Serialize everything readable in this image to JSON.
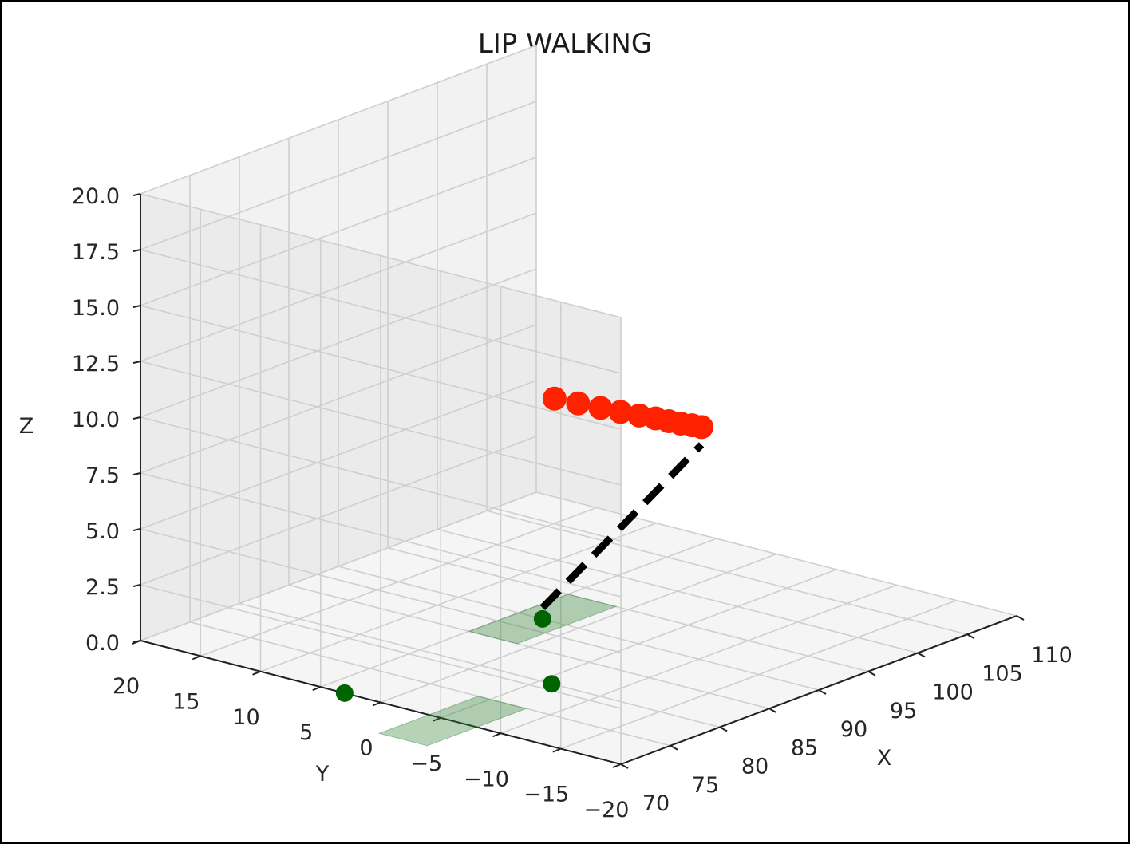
{
  "chart_data": {
    "type": "scatter",
    "projection": "3d",
    "title": "LIP WALKING",
    "xlabel": "X",
    "ylabel": "Y",
    "zlabel": "Z",
    "xlim": [
      70,
      110
    ],
    "ylim": [
      -20,
      20
    ],
    "zlim": [
      0,
      20
    ],
    "xticks": [
      "70",
      "75",
      "80",
      "85",
      "90",
      "95",
      "100",
      "105",
      "110"
    ],
    "yticks": [
      "20",
      "15",
      "10",
      "5",
      "0",
      "−5",
      "−10",
      "−15",
      "−20"
    ],
    "zticks": [
      "0.0",
      "2.5",
      "5.0",
      "7.5",
      "10.0",
      "12.5",
      "15.0",
      "17.5",
      "20.0"
    ],
    "grid": true,
    "series": [
      {
        "kind": "com_trajectory",
        "color": "#ff2200",
        "points": [
          {
            "x": 90.0,
            "y": 2.0,
            "z": 10.0
          },
          {
            "x": 90.2,
            "y": 0.2,
            "z": 10.0
          },
          {
            "x": 90.4,
            "y": -1.5,
            "z": 10.0
          },
          {
            "x": 90.6,
            "y": -3.0,
            "z": 10.0
          },
          {
            "x": 90.8,
            "y": -4.4,
            "z": 10.0
          },
          {
            "x": 91.0,
            "y": -5.6,
            "z": 10.0
          },
          {
            "x": 91.1,
            "y": -6.6,
            "z": 10.0
          },
          {
            "x": 91.2,
            "y": -7.5,
            "z": 10.0
          },
          {
            "x": 91.4,
            "y": -8.3,
            "z": 10.0
          },
          {
            "x": 91.5,
            "y": -9.0,
            "z": 10.0
          }
        ]
      },
      {
        "kind": "foot_contacts",
        "color": "#006400",
        "points": [
          {
            "x": 70.0,
            "y": 3.0,
            "z": 0
          },
          {
            "x": 80.0,
            "y": -6.0,
            "z": 0
          },
          {
            "x": 90.0,
            "y": 3.0,
            "z": 0
          }
        ]
      },
      {
        "kind": "support_pads",
        "color": "#2e7d32",
        "pads": [
          {
            "x": 90.0,
            "y": 3.0,
            "z": 0,
            "dx": 10,
            "dy": 4
          },
          {
            "x": 70.0,
            "y": -6.0,
            "z": 0,
            "dx": 10,
            "dy": 4
          }
        ]
      },
      {
        "kind": "leg",
        "color": "#000000",
        "style": "dashed",
        "from": {
          "x": 90.0,
          "y": 3.0,
          "z": 0
        },
        "to": {
          "x": 91.5,
          "y": -9.0,
          "z": 10.0
        }
      }
    ]
  }
}
